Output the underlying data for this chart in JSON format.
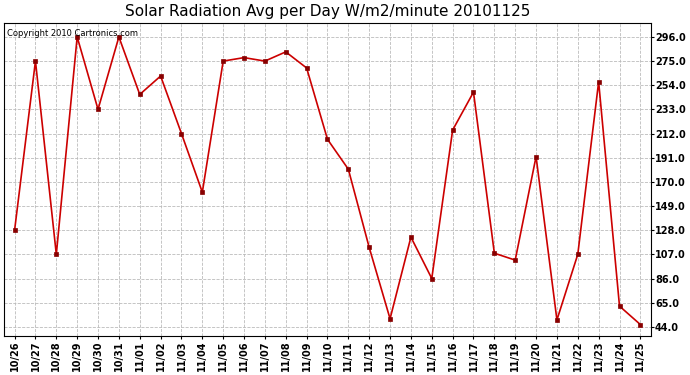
{
  "title": "Solar Radiation Avg per Day W/m2/minute 20101125",
  "copyright": "Copyright 2010 Cartronics.com",
  "labels": [
    "10/26",
    "10/27",
    "10/28",
    "10/29",
    "10/30",
    "10/31",
    "11/01",
    "11/02",
    "11/03",
    "11/04",
    "11/05",
    "11/06",
    "11/07",
    "11/08",
    "11/09",
    "11/10",
    "11/11",
    "11/12",
    "11/13",
    "11/14",
    "11/15",
    "11/16",
    "11/17",
    "11/18",
    "11/19",
    "11/20",
    "11/21",
    "11/22",
    "11/23",
    "11/24",
    "11/25"
  ],
  "values": [
    128,
    275,
    107,
    296,
    233,
    296,
    246,
    262,
    212,
    161,
    275,
    278,
    275,
    283,
    269,
    207,
    181,
    113,
    51,
    122,
    86,
    215,
    248,
    108,
    102,
    192,
    50,
    107,
    257,
    62,
    46
  ],
  "line_color": "#cc0000",
  "marker_color": "#880000",
  "bg_color": "#ffffff",
  "grid_color": "#bbbbbb",
  "yticks": [
    44.0,
    65.0,
    86.0,
    107.0,
    128.0,
    149.0,
    170.0,
    191.0,
    212.0,
    233.0,
    254.0,
    275.0,
    296.0
  ],
  "ylim": [
    36,
    308
  ],
  "title_fontsize": 11,
  "axis_fontsize": 7,
  "copyright_fontsize": 6
}
